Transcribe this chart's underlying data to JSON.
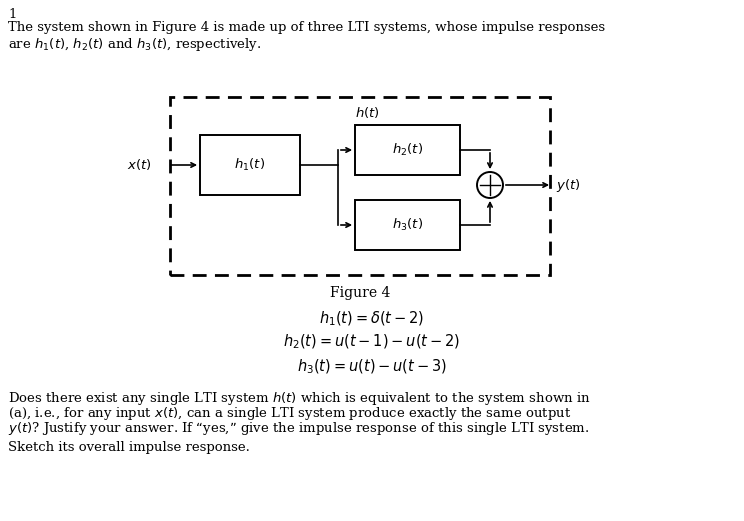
{
  "title_number": "1",
  "intro_text": "The system shown in Figure 4 is made up of three LTI systems, whose impulse responses",
  "intro_text2": "are $h_1(t)$, $h_2(t)$ and $h_3(t)$, respectively.",
  "figure_label": "Figure 4",
  "eq1": "$h_1(t) = \\delta(t - 2)$",
  "eq2": "$h_2(t) = u(t-1) - u(t-2)$",
  "eq3": "$h_3(t) = u(t) - u(t-3)$",
  "question_text1": "Does there exist any single LTI system $h(t)$ which is equivalent to the system shown in",
  "question_text2": "(a), i.e., for any input $x(t)$, can a single LTI system produce exactly the same output",
  "question_text3": "$y(t)$? Justify your answer. If “yes,” give the impulse response of this single LTI system.",
  "sketch_text": "Sketch its overall impulse response.",
  "bg_color": "#ffffff",
  "text_color": "#000000",
  "box_color": "#000000",
  "dashed_color": "#000000",
  "fig_w": 7.44,
  "fig_h": 5.21,
  "dpi": 100
}
